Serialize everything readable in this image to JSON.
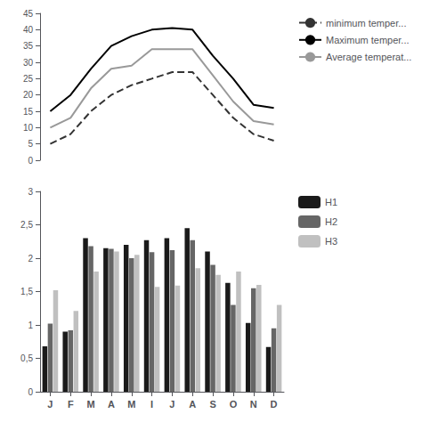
{
  "chart_data": [
    {
      "type": "line",
      "categories": [
        "J",
        "F",
        "M",
        "A",
        "M",
        "I",
        "J",
        "A",
        "S",
        "O",
        "N",
        "D"
      ],
      "series": [
        {
          "name": "minimum temper...",
          "color": "#333333",
          "line_style": "dashed",
          "values": [
            5,
            8,
            15,
            20,
            23,
            25,
            27,
            27,
            20,
            13,
            8,
            6
          ]
        },
        {
          "name": "Maximum temper...",
          "color": "#000000",
          "line_style": "solid",
          "values": [
            15,
            20,
            28,
            35,
            38,
            40,
            40.5,
            40,
            32,
            25,
            17,
            16
          ]
        },
        {
          "name": "Average temperat...",
          "color": "#999999",
          "line_style": "solid",
          "values": [
            10,
            13,
            22,
            28,
            29,
            34,
            34,
            34,
            26,
            18,
            12,
            11
          ]
        }
      ],
      "ylim": [
        0,
        45
      ],
      "yticks": [
        0,
        5,
        10,
        15,
        20,
        25,
        30,
        35,
        40,
        45
      ],
      "tick_labels": "y",
      "grid": false,
      "legend": "right"
    },
    {
      "type": "bar",
      "categories": [
        "J",
        "F",
        "M",
        "A",
        "M",
        "I",
        "J",
        "A",
        "S",
        "O",
        "N",
        "D"
      ],
      "series": [
        {
          "name": "H1",
          "color": "#1a1a1a",
          "values": [
            0.68,
            0.9,
            2.3,
            2.15,
            2.2,
            2.27,
            2.3,
            2.45,
            2.1,
            1.63,
            1.03,
            0.67
          ]
        },
        {
          "name": "H2",
          "color": "#666666",
          "values": [
            1.02,
            0.92,
            2.18,
            2.14,
            2.0,
            2.09,
            2.12,
            2.27,
            1.9,
            1.3,
            1.55,
            0.95
          ]
        },
        {
          "name": "H3",
          "color": "#c0c0c0",
          "values": [
            1.52,
            1.21,
            1.8,
            2.1,
            2.05,
            1.57,
            1.59,
            1.85,
            1.75,
            1.8,
            1.6,
            1.3
          ]
        }
      ],
      "ylim": [
        0,
        3
      ],
      "yticks": [
        0,
        {
          "value": 0.5,
          "label": "0,5"
        },
        1,
        {
          "value": 1.5,
          "label": "1,5"
        },
        2,
        {
          "value": 2.5,
          "label": "2,5"
        },
        3
      ],
      "grid": false,
      "legend": "right"
    }
  ]
}
